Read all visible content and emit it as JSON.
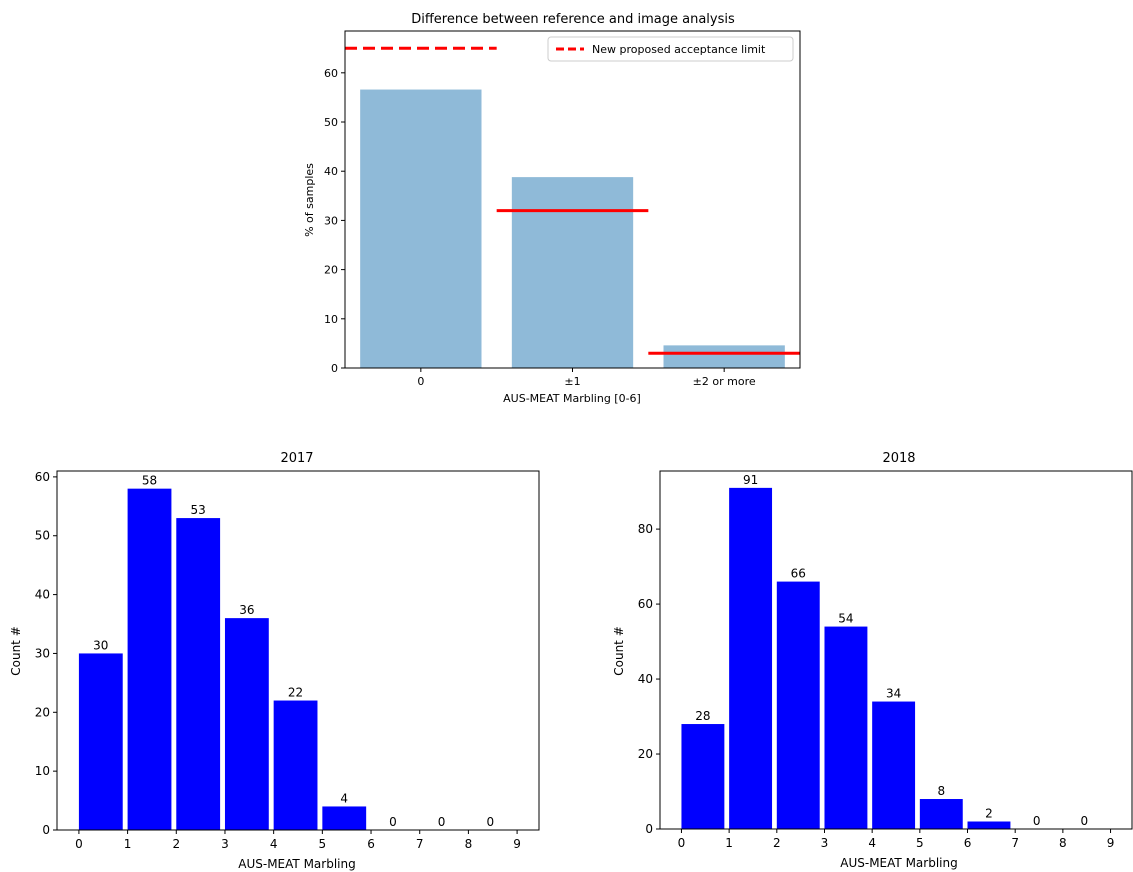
{
  "chart_data": [
    {
      "type": "bar",
      "title": "Difference between reference and image analysis",
      "xlabel": "AUS-MEAT Marbling [0-6]",
      "ylabel": "% of samples",
      "categories": [
        "0",
        "±1",
        "±2 or more"
      ],
      "values": [
        56.6,
        38.8,
        4.6
      ],
      "ylim": [
        0,
        68.5
      ],
      "yticks": [
        0,
        10,
        20,
        30,
        40,
        50,
        60
      ],
      "bar_color": "#8fbad8",
      "limit_color": "#ff0000",
      "acceptance_limits": [
        65,
        32,
        3
      ],
      "legend": {
        "label": "New proposed acceptance limit",
        "placement": "top-right"
      },
      "grid": false
    },
    {
      "type": "bar",
      "title": "2017",
      "xlabel": "AUS-MEAT Marbling",
      "ylabel": "Count #",
      "bin_edges": [
        0,
        1,
        2,
        3,
        4,
        5,
        6,
        7,
        8,
        9
      ],
      "values": [
        30,
        58,
        53,
        36,
        22,
        4,
        0,
        0,
        0
      ],
      "data_labels": [
        "30",
        "58",
        "53",
        "36",
        "22",
        "4",
        "0",
        "0",
        "0"
      ],
      "xlim": [
        -0.45,
        9.45
      ],
      "xticks": [
        0,
        1,
        2,
        3,
        4,
        5,
        6,
        7,
        8,
        9
      ],
      "ylim": [
        0,
        61
      ],
      "yticks": [
        0,
        10,
        20,
        30,
        40,
        50,
        60
      ],
      "bar_color": "#0000ff",
      "grid": false
    },
    {
      "type": "bar",
      "title": "2018",
      "xlabel": "AUS-MEAT Marbling",
      "ylabel": "Count #",
      "bin_edges": [
        0,
        1,
        2,
        3,
        4,
        5,
        6,
        7,
        8,
        9
      ],
      "values": [
        28,
        91,
        66,
        54,
        34,
        8,
        2,
        0,
        0
      ],
      "data_labels": [
        "28",
        "91",
        "66",
        "54",
        "34",
        "8",
        "2",
        "0",
        "0"
      ],
      "xlim": [
        -0.45,
        9.45
      ],
      "xticks": [
        0,
        1,
        2,
        3,
        4,
        5,
        6,
        7,
        8,
        9
      ],
      "ylim": [
        0,
        95.5
      ],
      "yticks": [
        0,
        20,
        40,
        60,
        80
      ],
      "bar_color": "#0000ff",
      "grid": false
    }
  ]
}
